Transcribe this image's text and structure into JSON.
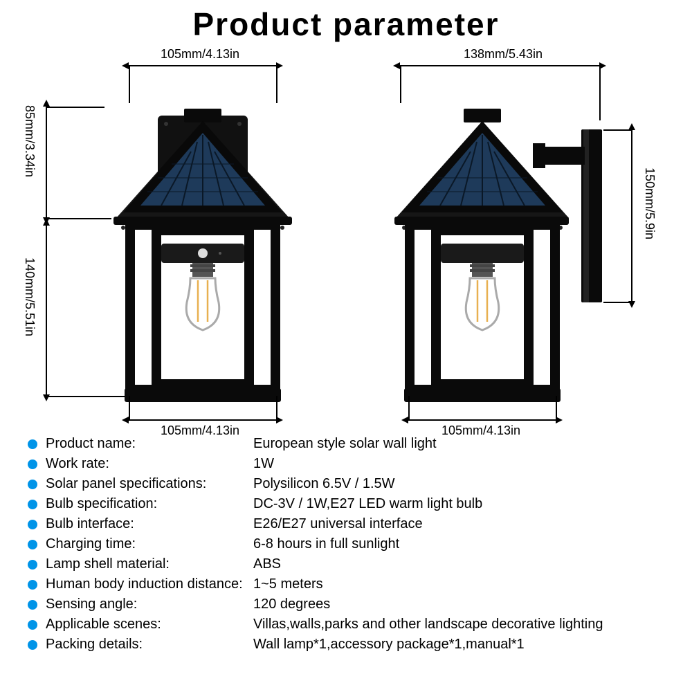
{
  "title": "Product parameter",
  "title_fontsize": 46,
  "title_weight": 900,
  "bullet_color": "#0094e8",
  "dims": {
    "front_top": "105mm/4.13in",
    "front_bottom": "105mm/4.13in",
    "front_left_upper": "85mm/3.34in",
    "front_left_lower": "140mm/5.51in",
    "side_top": "138mm/5.43in",
    "side_bottom": "105mm/4.13in",
    "side_right": "150mm/5.9in"
  },
  "specs": [
    {
      "label": "Product name:",
      "value": "European style solar wall light"
    },
    {
      "label": "Work rate:",
      "value": "1W"
    },
    {
      "label": "Solar panel specifications:",
      "value": "Polysilicon 6.5V / 1.5W"
    },
    {
      "label": "Bulb specification:",
      "value": "DC-3V / 1W,E27 LED warm light bulb"
    },
    {
      "label": "Bulb interface:",
      "value": "E26/E27 universal interface"
    },
    {
      "label": "Charging time:",
      "value": "6-8 hours in full sunlight"
    },
    {
      "label": "Lamp shell material:",
      "value": "ABS"
    },
    {
      "label": "Human body induction distance:",
      "value": "1~5 meters"
    },
    {
      "label": "Sensing angle:",
      "value": "120 degrees"
    },
    {
      "label": "Applicable scenes:",
      "value": "Villas,walls,parks and other landscape decorative lighting"
    },
    {
      "label": "Packing details:",
      "value": "Wall lamp*1,accessory package*1,manual*1"
    }
  ],
  "colors": {
    "lamp_body": "#0a0a0a",
    "solar_panel": "#1e3a5a",
    "solar_panel_line": "#0a1827",
    "bulb_socket": "#555555",
    "bulb_glass": "#e8e8e8",
    "bulb_filament": "#e8b050",
    "dim_line": "#000000",
    "text": "#000000",
    "background": "#ffffff"
  }
}
